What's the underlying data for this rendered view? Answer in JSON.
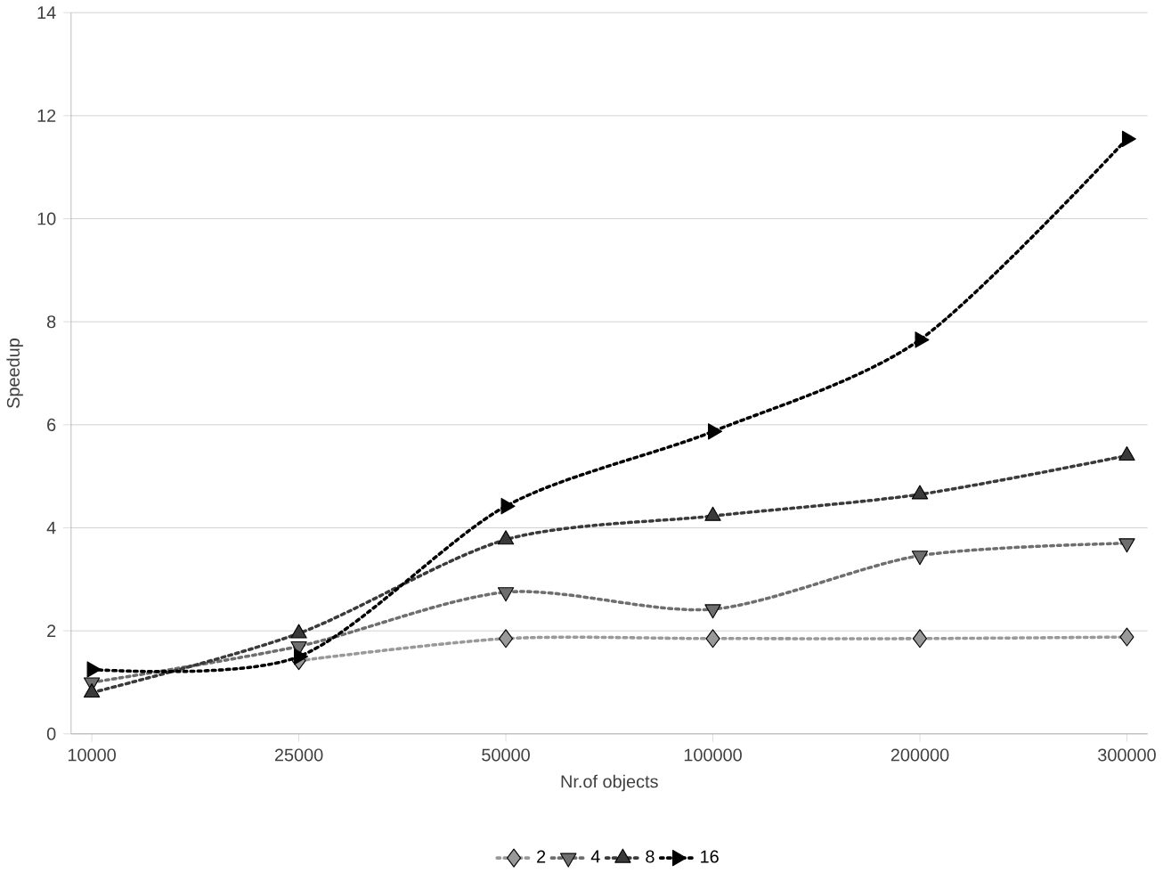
{
  "chart_data": {
    "type": "line",
    "xlabel": "Nr.of objects",
    "ylabel": "Speedup",
    "categories": [
      "10000",
      "25000",
      "50000",
      "100000",
      "200000",
      "300000"
    ],
    "ylim": [
      0,
      14
    ],
    "yticks": [
      0,
      2,
      4,
      6,
      8,
      10,
      12,
      14
    ],
    "grid": "y",
    "legend": "bottom",
    "line_style": "dotted",
    "series": [
      {
        "name": "2",
        "color": "#999999",
        "marker": "diamond",
        "values": [
          null,
          1.42,
          1.85,
          1.85,
          1.85,
          1.88
        ]
      },
      {
        "name": "4",
        "color": "#6e6e6e",
        "marker": "triangle down",
        "values": [
          1.0,
          1.7,
          2.75,
          2.42,
          3.46,
          3.7
        ]
      },
      {
        "name": "8",
        "color": "#3a3a3a",
        "marker": "triangle",
        "values": [
          0.8,
          1.95,
          3.77,
          4.23,
          4.65,
          5.4
        ]
      },
      {
        "name": "16",
        "color": "#000000",
        "marker": "triangle right",
        "values": [
          1.25,
          1.5,
          4.42,
          5.87,
          7.65,
          11.55
        ]
      }
    ]
  }
}
